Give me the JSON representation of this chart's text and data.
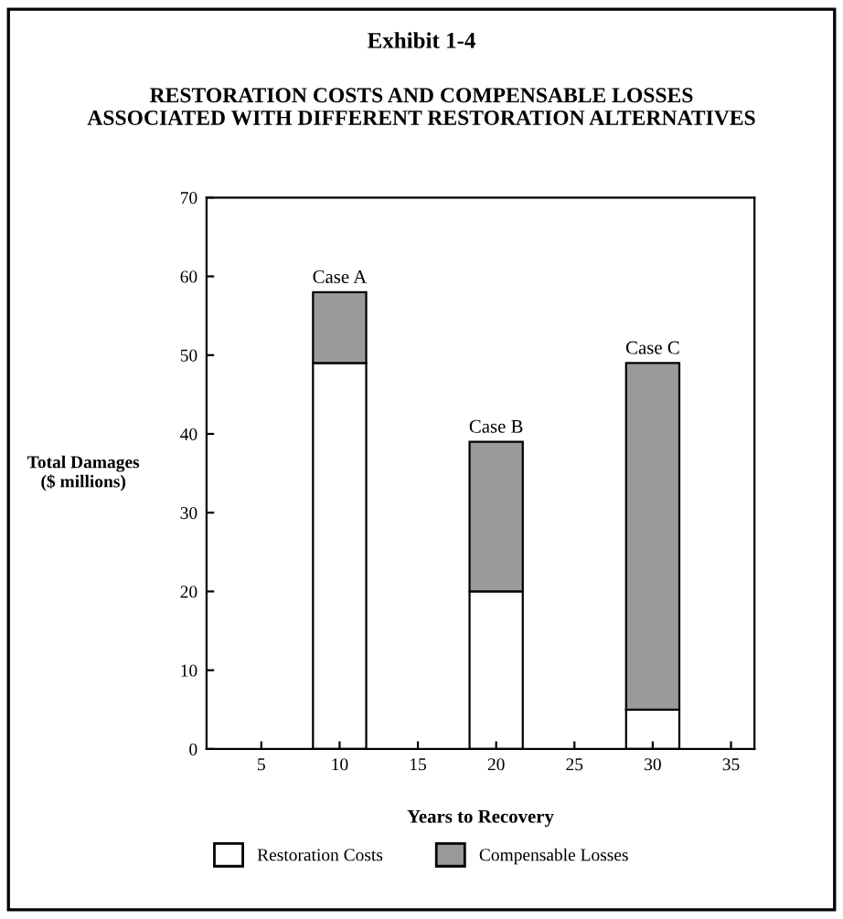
{
  "chart_data": {
    "type": "bar",
    "stacked": true,
    "title": "Exhibit 1-4",
    "subtitle": "RESTORATION COSTS AND COMPENSABLE LOSSES\nASSOCIATED WITH DIFFERENT RESTORATION ALTERNATIVES",
    "xlabel": "Years to Recovery",
    "ylabel": "Total Damages\n($ millions)",
    "x": [
      10,
      20,
      30
    ],
    "series": [
      {
        "name": "Restoration Costs",
        "color": "#ffffff",
        "values": [
          49,
          20,
          5
        ]
      },
      {
        "name": "Compensable Losses",
        "color": "#9a9a9a",
        "values": [
          9,
          19,
          44
        ]
      }
    ],
    "annotations": [
      {
        "text": "Case A",
        "x": 10,
        "y": 58
      },
      {
        "text": "Case B",
        "x": 20,
        "y": 39
      },
      {
        "text": "Case C",
        "x": 30,
        "y": 49
      }
    ],
    "xlim": [
      1.5,
      36.5
    ],
    "xticks": [
      5,
      10,
      15,
      20,
      25,
      30,
      35
    ],
    "ylim": [
      0,
      70
    ],
    "yticks": [
      0,
      10,
      20,
      30,
      40,
      50,
      60,
      70
    ],
    "grid": false,
    "legend": "bottom"
  }
}
